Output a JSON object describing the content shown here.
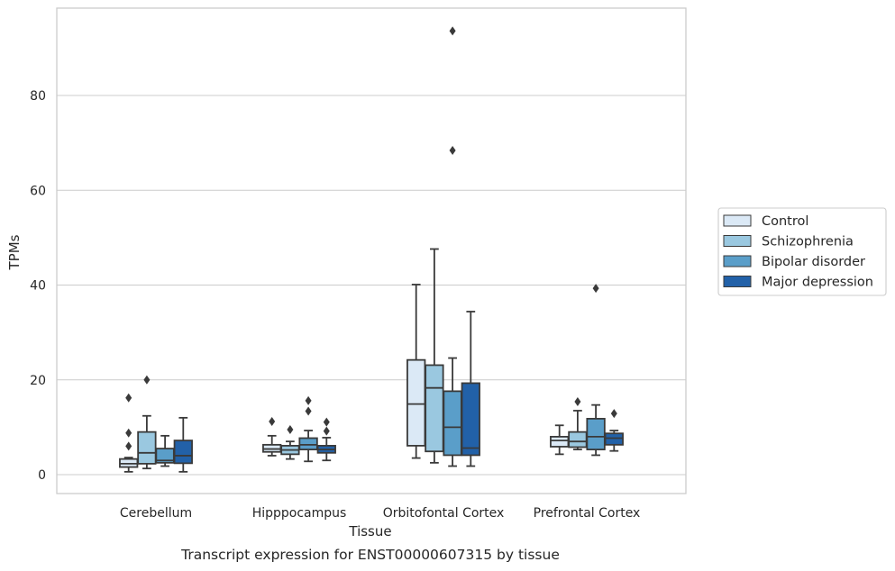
{
  "chart_data": {
    "type": "box",
    "caption": "Transcript expression for ENST00000607315 by tissue",
    "xlabel": "Tissue",
    "ylabel": "TPMs",
    "ylim": [
      -4,
      98
    ],
    "yticks": [
      0,
      20,
      40,
      60,
      80
    ],
    "grid": true,
    "legend_placement": "right",
    "categories": [
      "Cerebellum",
      "Hipppocampus",
      "Orbitofontal Cortex",
      "Prefrontal Cortex"
    ],
    "series": [
      {
        "name": "Control",
        "color": "#dbe9f6",
        "boxes": [
          {
            "whislo": 0.6,
            "q1": 1.6,
            "med": 2.3,
            "q3": 3.3,
            "whishi": 3.6,
            "fliers": [
              6.0,
              8.8,
              16.2
            ]
          },
          {
            "whislo": 4.0,
            "q1": 4.8,
            "med": 5.4,
            "q3": 6.3,
            "whishi": 8.2,
            "fliers": [
              11.2
            ]
          },
          {
            "whislo": 3.5,
            "q1": 6.1,
            "med": 14.9,
            "q3": 24.2,
            "whishi": 40.1,
            "fliers": []
          },
          {
            "whislo": 4.3,
            "q1": 5.9,
            "med": 7.2,
            "q3": 8.0,
            "whishi": 10.4,
            "fliers": []
          }
        ]
      },
      {
        "name": "Schizophrenia",
        "color": "#9ac8e0",
        "boxes": [
          {
            "whislo": 1.3,
            "q1": 2.3,
            "med": 4.6,
            "q3": 9.0,
            "whishi": 12.4,
            "fliers": [
              20.0
            ]
          },
          {
            "whislo": 3.3,
            "q1": 4.3,
            "med": 5.2,
            "q3": 6.1,
            "whishi": 7.0,
            "fliers": [
              9.5
            ]
          },
          {
            "whislo": 2.5,
            "q1": 4.9,
            "med": 18.3,
            "q3": 23.1,
            "whishi": 47.6,
            "fliers": []
          },
          {
            "whislo": 5.3,
            "q1": 5.8,
            "med": 7.0,
            "q3": 9.0,
            "whishi": 13.5,
            "fliers": [
              15.4
            ]
          }
        ]
      },
      {
        "name": "Bipolar disorder",
        "color": "#5a9ec9",
        "boxes": [
          {
            "whislo": 1.8,
            "q1": 2.5,
            "med": 3.0,
            "q3": 5.5,
            "whishi": 8.2,
            "fliers": []
          },
          {
            "whislo": 2.8,
            "q1": 5.3,
            "med": 6.3,
            "q3": 7.7,
            "whishi": 9.3,
            "fliers": [
              13.4,
              15.6
            ]
          },
          {
            "whislo": 1.8,
            "q1": 4.1,
            "med": 10.0,
            "q3": 17.6,
            "whishi": 24.6,
            "fliers": [
              68.4,
              93.6
            ]
          },
          {
            "whislo": 4.1,
            "q1": 5.3,
            "med": 8.0,
            "q3": 11.8,
            "whishi": 14.7,
            "fliers": [
              39.3
            ]
          }
        ]
      },
      {
        "name": "Major depression",
        "color": "#2261a8",
        "boxes": [
          {
            "whislo": 0.6,
            "q1": 2.4,
            "med": 4.0,
            "q3": 7.2,
            "whishi": 12.0,
            "fliers": []
          },
          {
            "whislo": 3.0,
            "q1": 4.6,
            "med": 5.3,
            "q3": 6.1,
            "whishi": 7.8,
            "fliers": [
              9.2,
              11.1
            ]
          },
          {
            "whislo": 1.8,
            "q1": 4.1,
            "med": 5.6,
            "q3": 19.3,
            "whishi": 34.4,
            "fliers": []
          },
          {
            "whislo": 5.0,
            "q1": 6.3,
            "med": 7.7,
            "q3": 8.7,
            "whishi": 9.3,
            "fliers": [
              12.9
            ]
          }
        ]
      }
    ]
  }
}
